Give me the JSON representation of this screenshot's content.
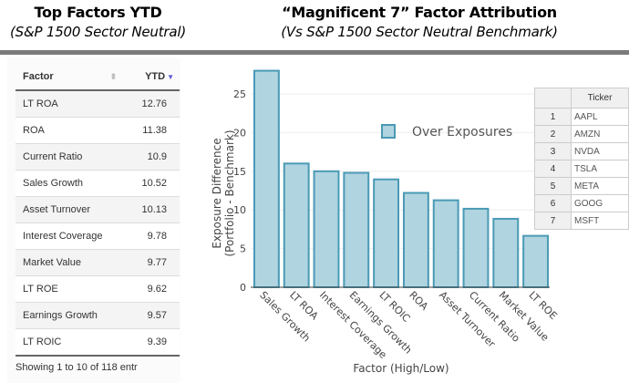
{
  "left_panel": {
    "title": "Top Factors YTD",
    "subtitle": "(S&P 1500 Sector Neutral)"
  },
  "right_panel": {
    "title": "“Magnificent 7” Factor Attribution",
    "subtitle": "(Vs S&P 1500 Sector Neutral Benchmark)"
  },
  "factor_table": {
    "columns": [
      "Factor",
      "YTD"
    ],
    "rows": [
      [
        "LT ROA",
        "12.76"
      ],
      [
        "ROA",
        "11.38"
      ],
      [
        "Current Ratio",
        "10.9"
      ],
      [
        "Sales Growth",
        "10.52"
      ],
      [
        "Asset Turnover",
        "10.13"
      ],
      [
        "Interest Coverage",
        "9.78"
      ],
      [
        "Market Value",
        "9.77"
      ],
      [
        "LT ROE",
        "9.62"
      ],
      [
        "Earnings Growth",
        "9.57"
      ],
      [
        "LT ROIC",
        "9.39"
      ]
    ],
    "footer": "Showing 1 to 10 of 118 entr"
  },
  "ticker_table": {
    "header": "Ticker",
    "rows": [
      [
        "1",
        "AAPL"
      ],
      [
        "2",
        "AMZN"
      ],
      [
        "3",
        "NVDA"
      ],
      [
        "4",
        "TSLA"
      ],
      [
        "5",
        "META"
      ],
      [
        "6",
        "GOOG"
      ],
      [
        "7",
        "MSFT"
      ]
    ]
  },
  "chart_data": {
    "type": "bar",
    "categories": [
      "Sales Growth",
      "LT ROA",
      "Interest Coverage",
      "Earnings Growth",
      "LT ROIC",
      "ROA",
      "Asset Turnover",
      "Current Ratio",
      "Market Value",
      "LT ROE"
    ],
    "series": [
      {
        "name": "Over Exposures",
        "values": [
          28.0,
          16.0,
          15.0,
          14.8,
          13.95,
          12.2,
          11.25,
          10.15,
          8.85,
          6.65
        ]
      }
    ],
    "xlabel": "Factor (High/Low)",
    "ylabel": [
      "Exposure Difference",
      "(Portfolio - Benchmark)"
    ],
    "yticks": [
      0,
      5,
      10,
      15,
      20,
      25
    ],
    "ylim": [
      0,
      28.5
    ],
    "grid": true,
    "legend": "top-right",
    "colors": {
      "fill": "#b0d4e0",
      "stroke": "#4a9ab5"
    }
  }
}
